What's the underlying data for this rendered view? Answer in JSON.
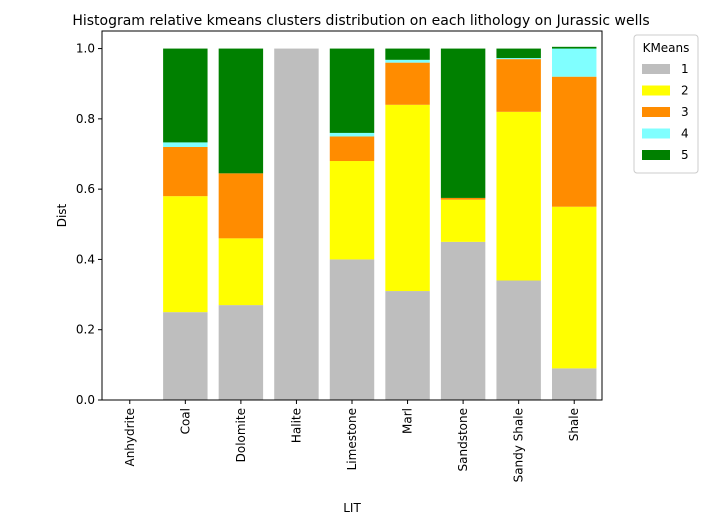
{
  "chart_data": {
    "type": "bar",
    "stacked": true,
    "title": "Histogram relative kmeans clusters distribution on each lithology on Jurassic wells",
    "xlabel": "LIT",
    "ylabel": "Dist",
    "ylim": [
      0,
      1.05
    ],
    "yticks": [
      0.0,
      0.2,
      0.4,
      0.6,
      0.8,
      1.0
    ],
    "ytick_labels": [
      "0.0",
      "0.2",
      "0.4",
      "0.6",
      "0.8",
      "1.0"
    ],
    "grid": false,
    "legend": {
      "title": "KMeans",
      "placement": "outside-top-right"
    },
    "categories": [
      "Anhydrite",
      "Coal",
      "Dolomite",
      "Halite",
      "Limestone",
      "Marl",
      "Sandstone",
      "Sandy Shale",
      "Shale"
    ],
    "series": [
      {
        "name": "1",
        "color": "#bebebe",
        "values": [
          0,
          0.25,
          0.27,
          1.0,
          0.4,
          0.31,
          0.45,
          0.34,
          0.09
        ]
      },
      {
        "name": "2",
        "color": "#ffff00",
        "values": [
          0,
          0.33,
          0.19,
          0,
          0.28,
          0.53,
          0.12,
          0.48,
          0.46
        ]
      },
      {
        "name": "3",
        "color": "#ff8c00",
        "values": [
          0,
          0.14,
          0.185,
          0,
          0.07,
          0.12,
          0.005,
          0.15,
          0.37
        ]
      },
      {
        "name": "4",
        "color": "#80ffff",
        "values": [
          0,
          0.013,
          0,
          0,
          0.01,
          0.008,
          0,
          0.003,
          0.08
        ]
      },
      {
        "name": "5",
        "color": "#008000",
        "values": [
          0,
          0.267,
          0.355,
          0,
          0.24,
          0.032,
          0.425,
          0.027,
          0.005
        ]
      }
    ]
  }
}
